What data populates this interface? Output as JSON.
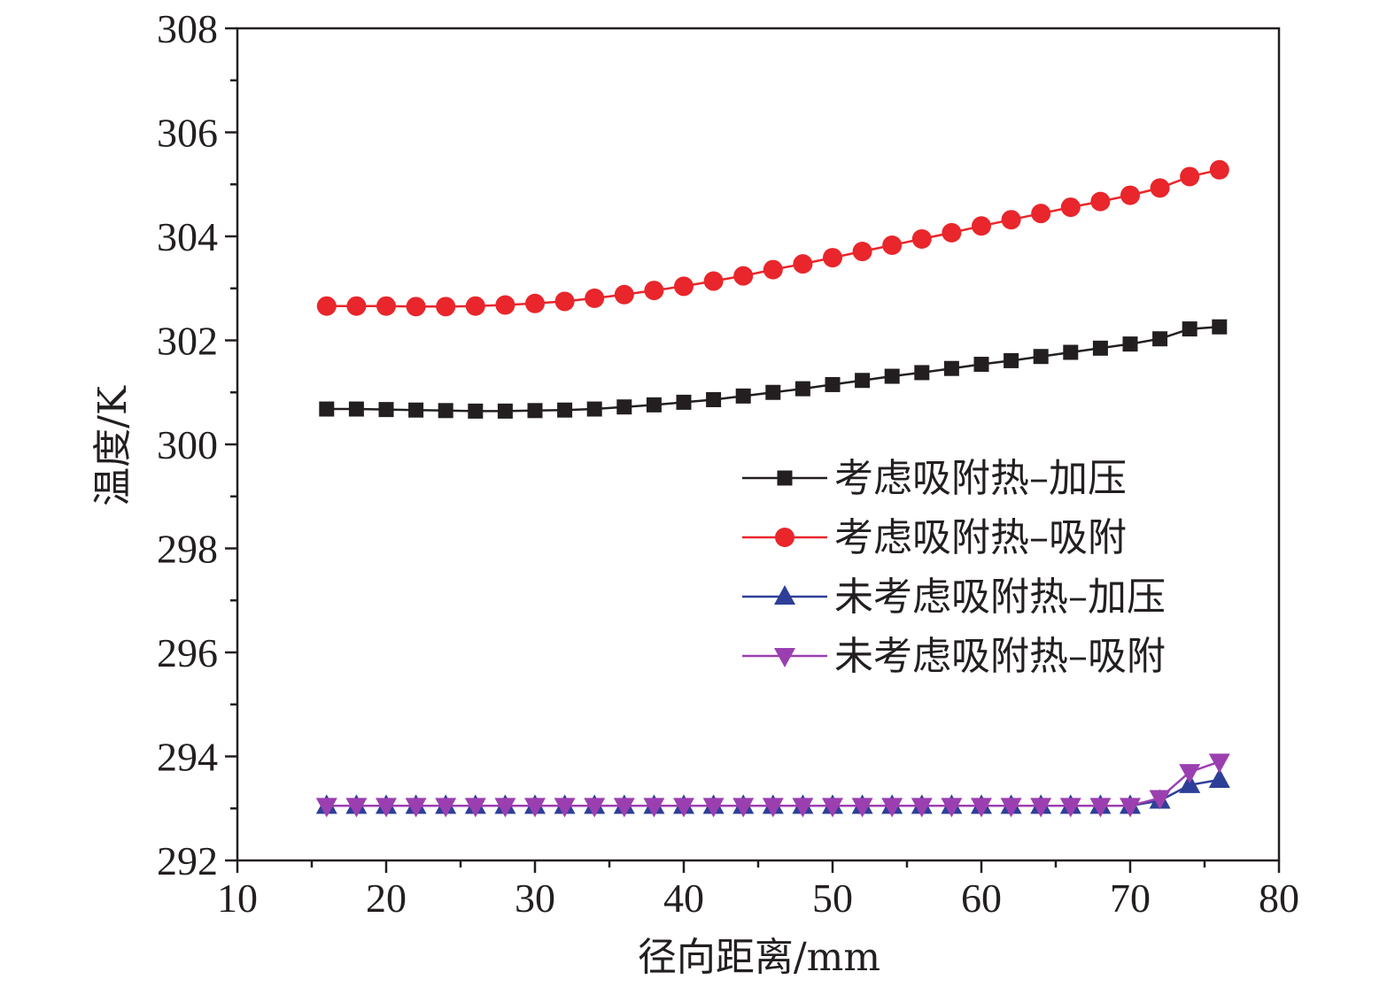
{
  "chart_data": {
    "type": "line",
    "xlabel": "径向距离/mm",
    "ylabel": "温度/K",
    "xlim": [
      10,
      80
    ],
    "ylim": [
      292,
      308
    ],
    "x_ticks": [
      10,
      20,
      30,
      40,
      50,
      60,
      70,
      80
    ],
    "y_ticks": [
      292,
      294,
      296,
      298,
      300,
      302,
      304,
      306,
      308
    ],
    "grid": false,
    "legend_position": "center-right",
    "x": [
      16,
      18,
      20,
      22,
      24,
      26,
      28,
      30,
      32,
      34,
      36,
      38,
      40,
      42,
      44,
      46,
      48,
      50,
      52,
      54,
      56,
      58,
      60,
      62,
      64,
      66,
      68,
      70,
      72,
      74,
      76
    ],
    "series": [
      {
        "name": "考虑吸附热–加压",
        "color": "#231f20",
        "marker": "square",
        "values": [
          300.68,
          300.68,
          300.67,
          300.66,
          300.65,
          300.64,
          300.64,
          300.65,
          300.66,
          300.68,
          300.72,
          300.76,
          300.81,
          300.86,
          300.93,
          301.0,
          301.07,
          301.15,
          301.23,
          301.31,
          301.38,
          301.46,
          301.54,
          301.61,
          301.69,
          301.77,
          301.85,
          301.93,
          302.03,
          302.22,
          302.26
        ]
      },
      {
        "name": "考虑吸附热–吸附",
        "color": "#e8262b",
        "marker": "circle",
        "values": [
          302.66,
          302.66,
          302.66,
          302.65,
          302.65,
          302.66,
          302.68,
          302.71,
          302.75,
          302.81,
          302.88,
          302.96,
          303.04,
          303.14,
          303.24,
          303.36,
          303.47,
          303.59,
          303.71,
          303.83,
          303.95,
          304.07,
          304.2,
          304.32,
          304.44,
          304.56,
          304.67,
          304.79,
          304.93,
          305.15,
          305.28
        ]
      },
      {
        "name": "未考虑吸附热–加压",
        "color": "#2e3f98",
        "marker": "triangle-up",
        "values": [
          293.05,
          293.05,
          293.05,
          293.05,
          293.05,
          293.05,
          293.05,
          293.05,
          293.05,
          293.05,
          293.05,
          293.05,
          293.05,
          293.05,
          293.05,
          293.05,
          293.05,
          293.05,
          293.05,
          293.05,
          293.05,
          293.05,
          293.05,
          293.05,
          293.05,
          293.05,
          293.05,
          293.05,
          293.15,
          293.45,
          293.55
        ]
      },
      {
        "name": "未考虑吸附热–吸附",
        "color": "#9b3fb0",
        "marker": "triangle-down",
        "values": [
          293.05,
          293.05,
          293.05,
          293.05,
          293.05,
          293.05,
          293.05,
          293.05,
          293.05,
          293.05,
          293.05,
          293.05,
          293.05,
          293.05,
          293.05,
          293.05,
          293.05,
          293.05,
          293.05,
          293.05,
          293.05,
          293.05,
          293.05,
          293.05,
          293.05,
          293.05,
          293.05,
          293.05,
          293.2,
          293.7,
          293.9
        ]
      }
    ]
  }
}
